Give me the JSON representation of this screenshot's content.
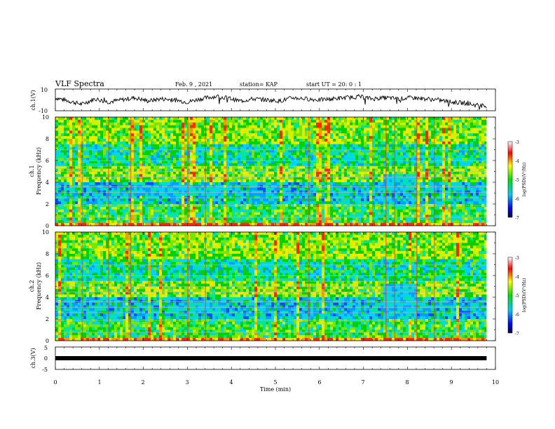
{
  "header": {
    "title": "VLF Spectra",
    "date": "Feb. 9 , 2021",
    "station": "station= KAP",
    "start": "start UT =  20: 0  : 1"
  },
  "chart_data": [
    {
      "type": "line",
      "panel": "ch1-waveform",
      "ylabel": "ch.1(V)",
      "ylim": [
        -10,
        10
      ],
      "yticks": [
        "10",
        "-10"
      ],
      "xlim": [
        0,
        10
      ],
      "x": [
        0,
        0.3,
        0.6,
        0.9,
        1.2,
        1.5,
        1.8,
        2.1,
        2.4,
        2.7,
        3.0,
        3.3,
        3.6,
        3.9,
        4.2,
        4.5,
        4.8,
        5.1,
        5.4,
        5.7,
        6.0,
        6.3,
        6.6,
        6.9,
        7.2,
        7.5,
        7.8,
        8.1,
        8.4,
        8.7,
        9.0,
        9.3,
        9.6,
        9.8
      ],
      "values": [
        2,
        -1,
        -4,
        1,
        -2,
        0,
        2,
        -1,
        1,
        0,
        -2,
        1,
        3,
        2,
        -1,
        1,
        0,
        -1,
        2,
        1,
        0,
        1,
        2,
        3,
        1,
        2,
        1,
        2,
        1,
        0,
        -2,
        -3,
        -5,
        -6
      ]
    },
    {
      "type": "heatmap",
      "panel": "ch1-spectrogram",
      "ylabel": "ch.1",
      "ylabel2": "Frequency (kHz)",
      "ylim": [
        0,
        10
      ],
      "yticks": [
        "0",
        "2",
        "4",
        "6",
        "8",
        "10"
      ],
      "xlim": [
        0,
        10
      ],
      "colorbar": {
        "label": "log(PSD)(V²/Hz)",
        "range": [
          -7,
          -3
        ],
        "ticks": [
          "-3",
          "-4",
          "-5",
          "-6",
          "-7"
        ]
      }
    },
    {
      "type": "heatmap",
      "panel": "ch2-spectrogram",
      "ylabel": "ch.2",
      "ylabel2": "Frequency (kHz)",
      "ylim": [
        0,
        10
      ],
      "yticks": [
        "0",
        "2",
        "4",
        "6",
        "8",
        "10"
      ],
      "xlim": [
        0,
        10
      ],
      "colorbar": {
        "label": "log(PSD)(V²/Hz)",
        "range": [
          -7,
          -3
        ],
        "ticks": [
          "-3",
          "-4",
          "-5",
          "-6",
          "-7"
        ]
      }
    },
    {
      "type": "line",
      "panel": "ch3-waveform",
      "ylabel": "ch.3(V)",
      "ylim": [
        -5,
        5
      ],
      "yticks": [
        "5",
        "0",
        "-5"
      ],
      "xlim": [
        0,
        9.8
      ],
      "level": 0
    }
  ],
  "xaxis": {
    "label": "Time (min)",
    "ticks": [
      "0",
      "1",
      "2",
      "3",
      "4",
      "5",
      "6",
      "7",
      "8",
      "9",
      "10"
    ]
  },
  "colors": {
    "line": "#000000",
    "background": "#ffffff"
  }
}
